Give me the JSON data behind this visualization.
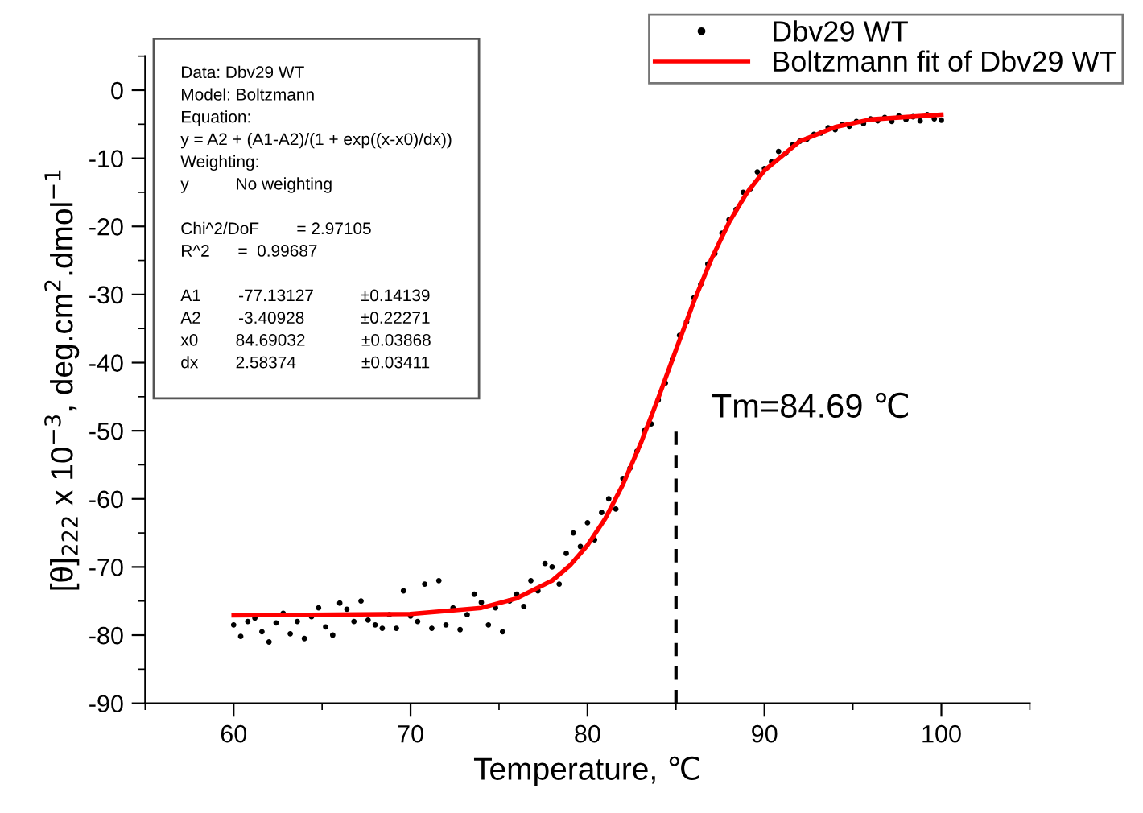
{
  "chart_data": {
    "type": "scatter",
    "xlabel": "Temperature, ℃",
    "ylabel": "[θ]$_{222}$ x 10$^{−3}$, deg.cm$^{2}$.dmol$^{−1}$",
    "xlim": [
      55,
      105
    ],
    "ylim": [
      -90,
      5
    ],
    "xticks": [
      {
        "value": 55,
        "label": null
      },
      60,
      {
        "value": 65,
        "label": null
      },
      70,
      {
        "value": 75,
        "label": null
      },
      80,
      {
        "value": 85,
        "label": null
      },
      90,
      {
        "value": 95,
        "label": null
      },
      100,
      {
        "value": 105,
        "label": null
      }
    ],
    "yticks": [
      -90,
      {
        "value": -85,
        "label": null
      },
      -80,
      {
        "value": -75,
        "label": null
      },
      -70,
      {
        "value": -65,
        "label": null
      },
      -60,
      {
        "value": -55,
        "label": null
      },
      -50,
      {
        "value": -45,
        "label": null
      },
      -40,
      {
        "value": -35,
        "label": null
      },
      -30,
      {
        "value": -25,
        "label": null
      },
      -20,
      {
        "value": -15,
        "label": null
      },
      -10,
      {
        "value": -5,
        "label": null
      },
      0,
      {
        "value": 5,
        "label": null
      }
    ],
    "grid": false,
    "legend": "top right",
    "series": [
      {
        "name": "Dbv29 WT",
        "marker": "circle",
        "color": "#000000",
        "x": [
          60.0,
          60.4,
          60.8,
          61.2,
          61.6,
          62.0,
          62.4,
          62.8,
          63.2,
          63.6,
          64.0,
          64.4,
          64.8,
          65.2,
          65.6,
          66.0,
          66.4,
          66.8,
          67.2,
          67.6,
          68.0,
          68.4,
          68.8,
          69.2,
          69.6,
          70.0,
          70.4,
          70.8,
          71.2,
          71.6,
          72.0,
          72.4,
          72.8,
          73.2,
          73.6,
          74.0,
          74.4,
          74.8,
          75.2,
          75.6,
          76.0,
          76.4,
          76.8,
          77.2,
          77.6,
          78.0,
          78.4,
          78.8,
          79.2,
          79.6,
          80.0,
          80.4,
          80.8,
          81.2,
          81.6,
          82.0,
          82.4,
          82.8,
          83.2,
          83.6,
          84.0,
          84.4,
          84.8,
          85.2,
          85.6,
          86.0,
          86.4,
          86.8,
          87.2,
          87.6,
          88.0,
          88.4,
          88.8,
          89.2,
          89.6,
          90.0,
          90.4,
          90.8,
          91.2,
          91.6,
          92.0,
          92.4,
          92.8,
          93.2,
          93.6,
          94.0,
          94.4,
          94.8,
          95.2,
          95.6,
          96.0,
          96.4,
          96.8,
          97.2,
          97.6,
          98.0,
          98.4,
          98.8,
          99.2,
          99.6,
          100.0
        ],
        "values": [
          -78.5,
          -80.2,
          -78.0,
          -77.5,
          -79.5,
          -81.0,
          -78.2,
          -76.8,
          -79.8,
          -78.0,
          -80.5,
          -77.3,
          -76.0,
          -78.8,
          -80.0,
          -75.3,
          -76.2,
          -78.0,
          -75.0,
          -77.8,
          -78.5,
          -79.0,
          -77.0,
          -79.0,
          -73.5,
          -77.2,
          -78.0,
          -72.5,
          -79.0,
          -72.0,
          -78.5,
          -76.0,
          -79.2,
          -77.0,
          -74.0,
          -75.2,
          -78.5,
          -76.0,
          -79.5,
          -75.0,
          -74.0,
          -75.8,
          -72.0,
          -73.5,
          -69.5,
          -70.0,
          -72.5,
          -68.0,
          -65.0,
          -67.0,
          -63.5,
          -66.0,
          -62.0,
          -60.0,
          -61.5,
          -57.0,
          -55.5,
          -53.0,
          -50.0,
          -49.0,
          -45.5,
          -43.0,
          -39.5,
          -36.0,
          -34.0,
          -30.5,
          -28.5,
          -25.5,
          -24.0,
          -21.0,
          -19.0,
          -17.5,
          -15.0,
          -14.5,
          -12.0,
          -11.5,
          -10.5,
          -9.0,
          -9.3,
          -8.0,
          -7.5,
          -7.2,
          -6.5,
          -6.3,
          -5.5,
          -5.8,
          -5.0,
          -5.3,
          -4.6,
          -4.9,
          -4.2,
          -4.5,
          -4.0,
          -4.6,
          -3.8,
          -4.3,
          -3.9,
          -4.5,
          -3.6,
          -4.2,
          -4.4
        ]
      },
      {
        "name": "Boltzmann fit of Dbv29 WT",
        "type": "line",
        "marker": "none",
        "line_style": "solid",
        "color": "#ff0000",
        "x": [
          60,
          70,
          74,
          76,
          78,
          79,
          80,
          81,
          82,
          83,
          84,
          85,
          86,
          87,
          88,
          89,
          90,
          92,
          94,
          96,
          100
        ],
        "values": [
          -77.1,
          -76.9,
          -76.0,
          -74.6,
          -72.0,
          -69.8,
          -66.8,
          -62.9,
          -57.9,
          -51.9,
          -45.2,
          -38.1,
          -31.1,
          -24.8,
          -19.4,
          -15.1,
          -11.8,
          -7.5,
          -5.4,
          -4.3,
          -3.6
        ]
      },
      {
        "type": "line",
        "marker": "none",
        "line_style": "dashed",
        "color": "#000000",
        "x": [
          85,
          85
        ],
        "values": [
          -90,
          -50
        ]
      }
    ],
    "annotations": [
      "Tm=84.69 ℃",
      "Data: Dbv29 WT\nModel: Boltzmann\nEquation:\ny = A2 + (A1-A2)/(1 + exp((x-x0)/dx))\nWeighting:\ny          No weighting\n\nChi^2/DoF        = 2.97105\nR^2      =  0.99687\n\nA1        -77.13127          ±0.14139\nA2        -3.40928            ±0.22271\nx0        84.69032            ±0.03868\ndx        2.58374              ±0.03411"
    ]
  }
}
